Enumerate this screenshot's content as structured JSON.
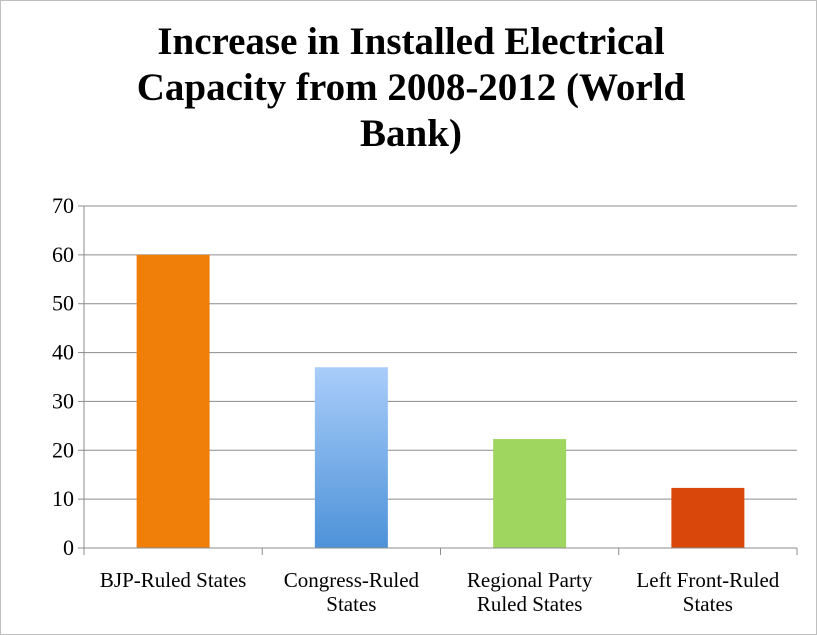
{
  "chart_data": {
    "type": "bar",
    "title": "Increase in Installed Electrical Capacity from 2008-2012 (World Bank)",
    "categories": [
      [
        "BJP-Ruled States"
      ],
      [
        "Congress-Ruled",
        "States"
      ],
      [
        "Regional Party",
        "Ruled States"
      ],
      [
        "Left Front-Ruled",
        "States"
      ]
    ],
    "values": [
      60,
      37,
      22.3,
      12.3
    ],
    "colors": [
      "#f07f09",
      "#5b9bd5",
      "#9fd660",
      "#d9480a"
    ],
    "gradient": [
      false,
      true,
      false,
      false
    ],
    "ylim": [
      0,
      70
    ],
    "yticks": [
      0,
      10,
      20,
      30,
      40,
      50,
      60,
      70
    ],
    "grid": true,
    "legend": "none"
  }
}
